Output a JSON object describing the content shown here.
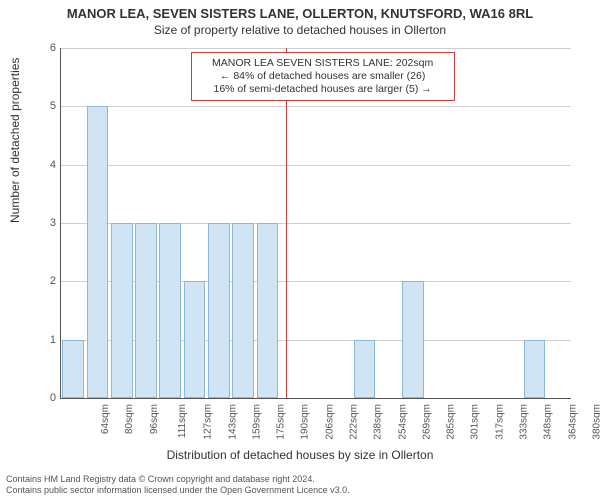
{
  "titles": {
    "main": "MANOR LEA, SEVEN SISTERS LANE, OLLERTON, KNUTSFORD, WA16 8RL",
    "sub": "Size of property relative to detached houses in Ollerton"
  },
  "axes": {
    "y_label": "Number of detached properties",
    "x_label": "Distribution of detached houses by size in Ollerton",
    "y_max": 6,
    "y_ticks": [
      0,
      1,
      2,
      3,
      4,
      5,
      6
    ]
  },
  "chart": {
    "type": "bar",
    "categories": [
      "64sqm",
      "80sqm",
      "96sqm",
      "111sqm",
      "127sqm",
      "143sqm",
      "159sqm",
      "175sqm",
      "190sqm",
      "206sqm",
      "222sqm",
      "238sqm",
      "254sqm",
      "269sqm",
      "285sqm",
      "301sqm",
      "317sqm",
      "333sqm",
      "348sqm",
      "364sqm",
      "380sqm"
    ],
    "values": [
      1,
      5,
      3,
      3,
      3,
      2,
      3,
      3,
      3,
      0,
      0,
      0,
      1,
      0,
      2,
      0,
      0,
      0,
      0,
      1,
      0
    ],
    "bar_fill": "#d1e4f3",
    "bar_border": "#8bb9dd",
    "grid_color": "#cfcfcf",
    "background": "#ffffff"
  },
  "marker": {
    "value_sqm": 202,
    "line_color": "#d93a3a",
    "box_lines": {
      "l1": "MANOR LEA SEVEN SISTERS LANE: 202sqm",
      "l2": "← 84% of detached houses are smaller (26)",
      "l3": "16% of semi-detached houses are larger (5) →"
    }
  },
  "footer": {
    "l1": "Contains HM Land Registry data © Crown copyright and database right 2024.",
    "l2": "Contains public sector information licensed under the Open Government Licence v3.0."
  }
}
